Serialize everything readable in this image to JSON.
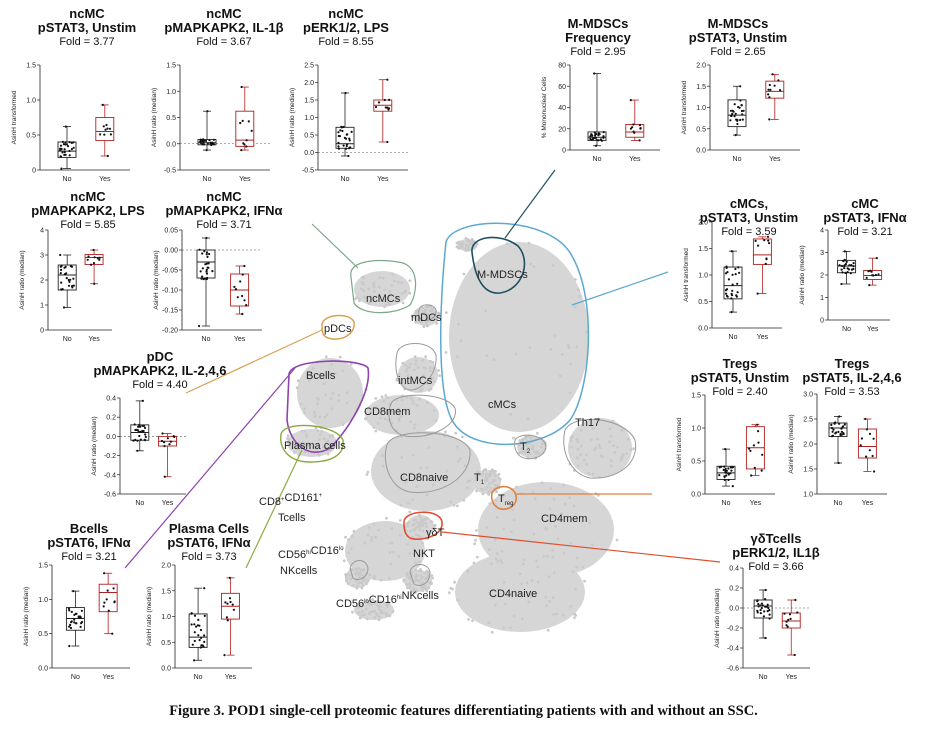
{
  "caption": "Figure 3. POD1 single-cell proteomic features differentiating patients with and without an SSC.",
  "colors": {
    "no_box": "#222222",
    "yes_box": "#b02020",
    "umap_points": "#d6d6d6",
    "outline": "#9a9a9a"
  },
  "clusters": [
    {
      "label": "ncMCs"
    },
    {
      "label": "mDCs"
    },
    {
      "label": "pDCs"
    },
    {
      "label": "M-MDSCs"
    },
    {
      "label": "intMCs"
    },
    {
      "label": "Bcells"
    },
    {
      "label": "cMCs"
    },
    {
      "label": "CD8mem"
    },
    {
      "label": "Plasma cells"
    },
    {
      "label": "Th17"
    },
    {
      "label": "T"
    },
    {
      "label": "2"
    },
    {
      "label": "CD8naive"
    },
    {
      "label": "T"
    },
    {
      "label": "1"
    },
    {
      "label": "T"
    },
    {
      "label": "reg"
    },
    {
      "label": "CD8"
    },
    {
      "label": "+"
    },
    {
      "label": "CD161"
    },
    {
      "label": "+"
    },
    {
      "label": "Tcells"
    },
    {
      "label": "CD4mem"
    },
    {
      "label": "γδT"
    },
    {
      "label": "CD56"
    },
    {
      "label": "hi"
    },
    {
      "label": "CD16"
    },
    {
      "label": "lo"
    },
    {
      "label": "NKcells"
    },
    {
      "label": "NKT"
    },
    {
      "label": "CD4naive"
    },
    {
      "label": "CD56"
    },
    {
      "label": "lo"
    },
    {
      "label": "CD16"
    },
    {
      "label": "hi"
    },
    {
      "label": "NKcells"
    }
  ],
  "chart_data": [
    {
      "type": "box",
      "title": [
        "ncMC",
        "pSTAT3, Unstim"
      ],
      "fold": "Fold = 3.77",
      "ylabel": "AsinH transformed",
      "ylim": [
        0,
        1.5
      ],
      "ticks": [
        "0",
        "0.5",
        "1.0",
        "1.5"
      ],
      "categories": [
        "No",
        "Yes"
      ],
      "series": [
        {
          "name": "No",
          "stats": [
            0.02,
            0.18,
            0.27,
            0.4,
            0.62
          ]
        },
        {
          "name": "Yes",
          "stats": [
            0.2,
            0.42,
            0.55,
            0.75,
            0.93
          ]
        }
      ]
    },
    {
      "type": "box",
      "title": [
        "ncMC",
        "pMAPKAPK2, IL-1β"
      ],
      "fold": "Fold = 3.67",
      "ylabel": "AsinH ratio (median)",
      "ylim": [
        -0.5,
        1.5
      ],
      "ticks": [
        "-0.5",
        "0.0",
        "0.5",
        "1.0",
        "1.5"
      ],
      "categories": [
        "No",
        "Yes"
      ],
      "series": [
        {
          "name": "No",
          "stats": [
            -0.12,
            -0.02,
            0.02,
            0.08,
            0.62
          ]
        },
        {
          "name": "Yes",
          "stats": [
            -0.12,
            -0.05,
            0.07,
            0.62,
            1.08
          ]
        }
      ]
    },
    {
      "type": "box",
      "title": [
        "ncMC",
        "pERK1/2, LPS"
      ],
      "fold": "Fold = 8.55",
      "ylabel": "AsinH ratio (median)",
      "ylim": [
        -0.5,
        2.5
      ],
      "ticks": [
        "-0.5",
        "0.0",
        "0.5",
        "1.0",
        "1.5",
        "2.0",
        "2.5"
      ],
      "categories": [
        "No",
        "Yes"
      ],
      "series": [
        {
          "name": "No",
          "stats": [
            -0.1,
            0.12,
            0.25,
            0.72,
            1.7
          ]
        },
        {
          "name": "Yes",
          "stats": [
            0.3,
            1.18,
            1.35,
            1.5,
            2.08
          ]
        }
      ]
    },
    {
      "type": "box",
      "title": [
        "M-MDSCs",
        "Frequency"
      ],
      "fold": "Fold = 2.95",
      "ylabel": "% Mononuclear Cells",
      "ylim": [
        0,
        80
      ],
      "ticks": [
        "0",
        "20",
        "40",
        "60",
        "80"
      ],
      "categories": [
        "No",
        "Yes"
      ],
      "series": [
        {
          "name": "No",
          "stats": [
            4,
            9,
            12,
            17,
            72
          ]
        },
        {
          "name": "Yes",
          "stats": [
            9,
            12,
            17,
            24,
            47
          ]
        }
      ]
    },
    {
      "type": "box",
      "title": [
        "M-MDSCs",
        "pSTAT3, Unstim"
      ],
      "fold": "Fold = 2.65",
      "ylabel": "AsinH transformed",
      "ylim": [
        0,
        2.0
      ],
      "ticks": [
        "0.0",
        "0.5",
        "1.0",
        "1.5",
        "2.0"
      ],
      "categories": [
        "No",
        "Yes"
      ],
      "series": [
        {
          "name": "No",
          "stats": [
            0.35,
            0.55,
            0.82,
            1.18,
            1.5
          ]
        },
        {
          "name": "Yes",
          "stats": [
            0.72,
            1.22,
            1.38,
            1.62,
            1.78
          ]
        }
      ]
    },
    {
      "type": "box",
      "title": [
        "ncMC",
        "pMAPKAPK2, LPS"
      ],
      "fold": "Fold = 5.85",
      "ylabel": "AsinH ratio (median)",
      "ylim": [
        0,
        4
      ],
      "ticks": [
        "0",
        "1",
        "2",
        "3",
        "4"
      ],
      "categories": [
        "No",
        "Yes"
      ],
      "series": [
        {
          "name": "No",
          "stats": [
            0.9,
            1.6,
            2.2,
            2.6,
            3.0
          ]
        },
        {
          "name": "Yes",
          "stats": [
            1.85,
            2.62,
            2.9,
            3.02,
            3.2
          ]
        }
      ]
    },
    {
      "type": "box",
      "title": [
        "ncMC",
        "pMAPKAPK2, IFNα"
      ],
      "fold": "Fold = 3.71",
      "ylabel": "AsinH ratio (median)",
      "ylim": [
        -0.2,
        0.05
      ],
      "ticks": [
        "-0.20",
        "-0.15",
        "-0.10",
        "-0.05",
        "0.00",
        "0.05"
      ],
      "categories": [
        "No",
        "Yes"
      ],
      "series": [
        {
          "name": "No",
          "stats": [
            -0.19,
            -0.07,
            -0.03,
            0.0,
            0.03
          ]
        },
        {
          "name": "Yes",
          "stats": [
            -0.16,
            -0.14,
            -0.1,
            -0.06,
            -0.04
          ]
        }
      ]
    },
    {
      "type": "box",
      "title": [
        "cMCs,",
        "pSTAT3, Unstim"
      ],
      "fold": "Fold = 3.59",
      "ylabel": "AsinH transformed",
      "ylim": [
        0,
        2.0
      ],
      "ticks": [
        "0.0",
        "0.5",
        "1.0",
        "1.5",
        "2.0"
      ],
      "categories": [
        "No",
        "Yes"
      ],
      "series": [
        {
          "name": "No",
          "stats": [
            0.3,
            0.55,
            0.8,
            1.15,
            1.45
          ]
        },
        {
          "name": "Yes",
          "stats": [
            0.65,
            1.2,
            1.38,
            1.68,
            1.72
          ]
        }
      ]
    },
    {
      "type": "box",
      "title": [
        "cMC",
        "pSTAT3, IFNα"
      ],
      "fold": "Fold = 3.21",
      "ylabel": "AsinH ratio (median)",
      "ylim": [
        0,
        4
      ],
      "ticks": [
        "0",
        "1",
        "2",
        "3",
        "4"
      ],
      "categories": [
        "No",
        "Yes"
      ],
      "series": [
        {
          "name": "No",
          "stats": [
            1.6,
            2.1,
            2.4,
            2.65,
            3.05
          ]
        },
        {
          "name": "Yes",
          "stats": [
            1.55,
            1.8,
            1.98,
            2.2,
            2.75
          ]
        }
      ]
    },
    {
      "type": "box",
      "title": [
        "pDC",
        "pMAPKAPK2, IL-2,4,6"
      ],
      "fold": "Fold = 4.40",
      "ylabel": "AsinH ratio (median)",
      "ylim": [
        -0.6,
        0.4
      ],
      "ticks": [
        "-0.6",
        "-0.4",
        "-0.2",
        "0.0",
        "0.2",
        "0.4"
      ],
      "categories": [
        "No",
        "Yes"
      ],
      "series": [
        {
          "name": "No",
          "stats": [
            -0.15,
            -0.04,
            0.04,
            0.12,
            0.37
          ]
        },
        {
          "name": "Yes",
          "stats": [
            -0.42,
            -0.1,
            -0.05,
            0.0,
            0.03
          ]
        }
      ]
    },
    {
      "type": "box",
      "title": [
        "Tregs",
        "pSTAT5, Unstim"
      ],
      "fold": "Fold = 2.40",
      "ylabel": "AsinH transformed",
      "ylim": [
        0,
        1.5
      ],
      "ticks": [
        "0.0",
        "0.5",
        "1.0",
        "1.5"
      ],
      "categories": [
        "No",
        "Yes"
      ],
      "series": [
        {
          "name": "No",
          "stats": [
            0.12,
            0.22,
            0.32,
            0.42,
            0.68
          ]
        },
        {
          "name": "Yes",
          "stats": [
            0.28,
            0.38,
            0.7,
            1.02,
            1.05
          ]
        }
      ]
    },
    {
      "type": "box",
      "title": [
        "Tregs",
        "pSTAT5, IL-2,4,6"
      ],
      "fold": "Fold = 3.53",
      "ylabel": "AsinH ratio (median)",
      "ylim": [
        1.0,
        3.0
      ],
      "ticks": [
        "1.0",
        "1.5",
        "2.0",
        "2.5",
        "3.0"
      ],
      "categories": [
        "No",
        "Yes"
      ],
      "series": [
        {
          "name": "No",
          "stats": [
            1.62,
            2.15,
            2.32,
            2.42,
            2.55
          ]
        },
        {
          "name": "Yes",
          "stats": [
            1.45,
            1.72,
            1.95,
            2.3,
            2.5
          ]
        }
      ]
    },
    {
      "type": "box",
      "title": [
        "Bcells",
        "pSTAT6, IFNα"
      ],
      "fold": "Fold = 3.21",
      "ylabel": "AsinH ratio (median)",
      "ylim": [
        0,
        1.5
      ],
      "ticks": [
        "0.0",
        "0.5",
        "1.0",
        "1.5"
      ],
      "categories": [
        "No",
        "Yes"
      ],
      "series": [
        {
          "name": "No",
          "stats": [
            0.32,
            0.55,
            0.72,
            0.88,
            1.12
          ]
        },
        {
          "name": "Yes",
          "stats": [
            0.5,
            0.82,
            1.1,
            1.22,
            1.38
          ]
        }
      ]
    },
    {
      "type": "box",
      "title": [
        "Plasma Cells",
        "pSTAT6, IFNα"
      ],
      "fold": "Fold = 3.73",
      "ylabel": "AsinH ratio (median)",
      "ylim": [
        0,
        2.0
      ],
      "ticks": [
        "0.0",
        "0.5",
        "1.0",
        "1.5",
        "2.0"
      ],
      "categories": [
        "No",
        "Yes"
      ],
      "series": [
        {
          "name": "No",
          "stats": [
            0.15,
            0.4,
            0.6,
            1.05,
            1.55
          ]
        },
        {
          "name": "Yes",
          "stats": [
            0.25,
            0.95,
            1.2,
            1.45,
            1.75
          ]
        }
      ]
    },
    {
      "type": "box",
      "title": [
        "γδTcells",
        "pERK1/2, IL1β"
      ],
      "fold": "Fold = 3.66",
      "ylabel": "AsinH ratio (median)",
      "ylim": [
        -0.6,
        0.4
      ],
      "ticks": [
        "-0.6",
        "-0.4",
        "-0.2",
        "0.0",
        "0.2",
        "0.4"
      ],
      "categories": [
        "No",
        "Yes"
      ],
      "series": [
        {
          "name": "No",
          "stats": [
            -0.3,
            -0.1,
            0.02,
            0.08,
            0.18
          ]
        },
        {
          "name": "Yes",
          "stats": [
            -0.47,
            -0.2,
            -0.13,
            -0.05,
            0.08
          ]
        }
      ]
    }
  ]
}
